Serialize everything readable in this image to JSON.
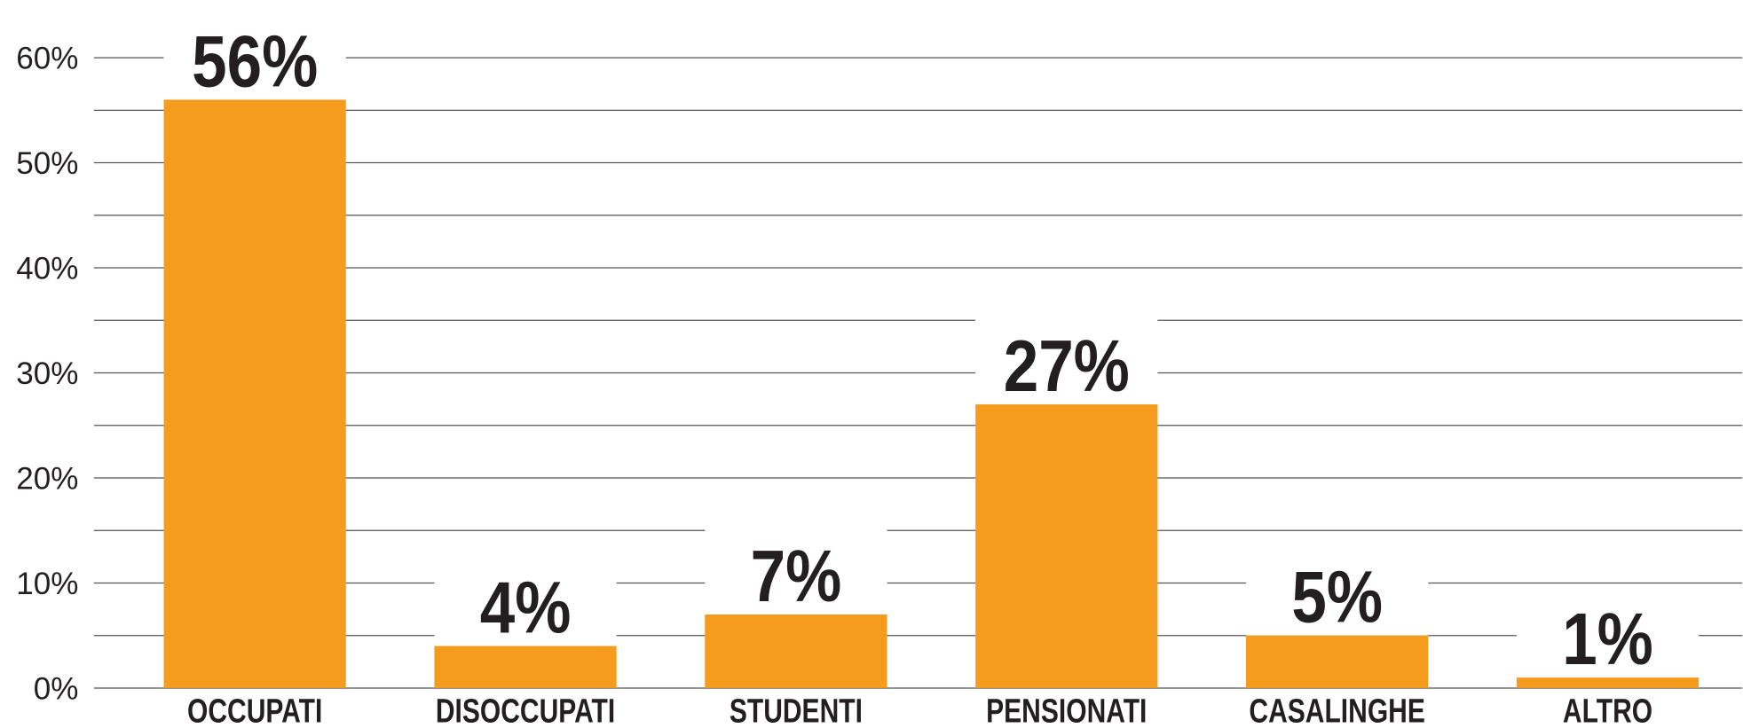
{
  "chart_data": {
    "type": "bar",
    "categories": [
      "OCCUPATI",
      "DISOCCUPATI",
      "STUDENTI",
      "PENSIONATI",
      "CASALINGHE",
      "ALTRO"
    ],
    "values": [
      56,
      4,
      7,
      27,
      5,
      1
    ],
    "value_labels": [
      "56%",
      "4%",
      "7%",
      "27%",
      "5%",
      "1%"
    ],
    "color": "#f59c1e",
    "ylim": [
      0,
      60
    ],
    "yticks": [
      {
        "value": 0,
        "label": "0%"
      },
      {
        "value": 10,
        "label": "10%"
      },
      {
        "value": 20,
        "label": "20%"
      },
      {
        "value": 30,
        "label": "30%"
      },
      {
        "value": 40,
        "label": "40%"
      },
      {
        "value": 50,
        "label": "50%"
      },
      {
        "value": 60,
        "label": "60%"
      }
    ],
    "minor_yticks": [
      5,
      15,
      25,
      35,
      45,
      55
    ],
    "grid": true
  }
}
